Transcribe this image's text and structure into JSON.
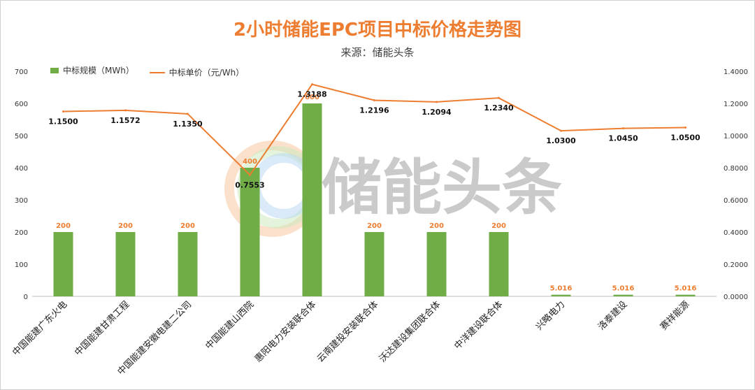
{
  "chart_data": {
    "type": "bar",
    "title": "2小时储能EPC项目中标价格走势图",
    "subtitle": "来源：储能头条",
    "watermark": "储能头条",
    "categories": [
      "中国能建广东火电",
      "中国能建甘肃工程",
      "中国能建安徽电建二公司",
      "中国能建山西院",
      "惠阳电力安装联合体",
      "云南建投安装联合体",
      "沃达建设集团联合体",
      "中洋建设联合体",
      "兴略电力",
      "洛泰建设",
      "赛祥能源"
    ],
    "series": [
      {
        "name": "中标规模（MWh）",
        "type": "bar",
        "axis": "left",
        "color": "#70AD47",
        "values": [
          200,
          200,
          200,
          400,
          600,
          200,
          200,
          200,
          5.016,
          5.016,
          5.016
        ],
        "labels": [
          "200",
          "200",
          "200",
          "400",
          "600",
          "200",
          "200",
          "200",
          "5.016",
          "5.016",
          "5.016"
        ]
      },
      {
        "name": "中标单价（元/Wh）",
        "type": "line",
        "axis": "right",
        "color": "#ED7D31",
        "values": [
          1.15,
          1.1572,
          1.135,
          0.7553,
          1.3188,
          1.2196,
          1.2094,
          1.234,
          1.03,
          1.045,
          1.05
        ],
        "labels": [
          "1.1500",
          "1.1572",
          "1.1350",
          "0.7553",
          "1.3188",
          "1.2196",
          "1.2094",
          "1.2340",
          "1.0300",
          "1.0450",
          "1.0500"
        ]
      }
    ],
    "y_left": {
      "min": 0,
      "max": 700,
      "ticks": [
        "0",
        "100",
        "200",
        "300",
        "400",
        "500",
        "600",
        "700"
      ]
    },
    "y_right": {
      "min": 0,
      "max": 1.4,
      "ticks": [
        "0.0000",
        "0.2000",
        "0.4000",
        "0.6000",
        "0.8000",
        "1.0000",
        "1.2000",
        "1.4000"
      ]
    },
    "legend_position": "top-left",
    "grid": false
  }
}
